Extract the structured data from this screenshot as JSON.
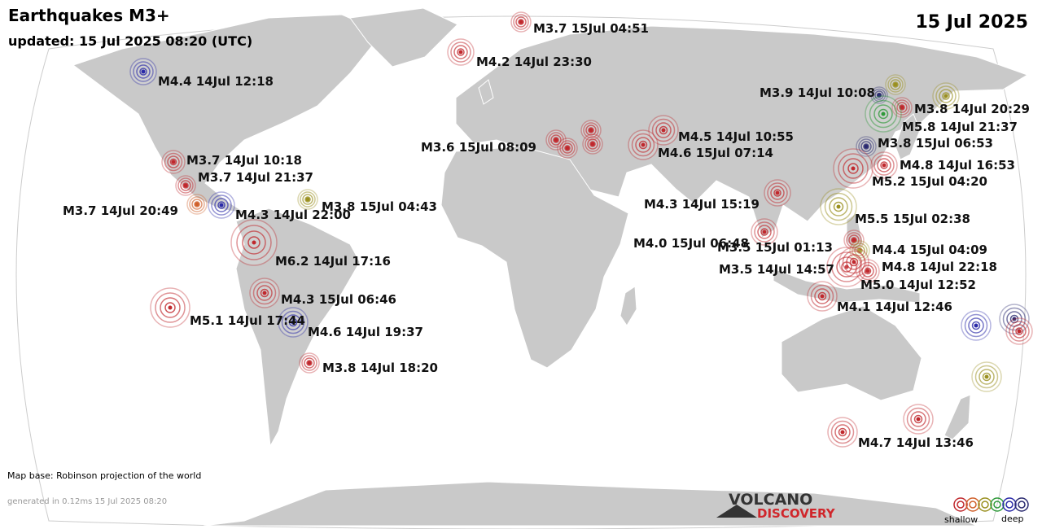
{
  "header": {
    "title": "Earthquakes M3+",
    "updated": "updated: 15 Jul 2025 08:20 (UTC)",
    "date": "15 Jul 2025"
  },
  "quakes": [
    {
      "label": "M3.7 15Jul 04:51",
      "color": "#c0282d"
    },
    {
      "label": "M4.2 14Jul 23:30",
      "color": "#c0282d"
    },
    {
      "label": "M4.4 14Jul 12:18",
      "color": "#2a2aa8"
    },
    {
      "label": "M3.9 14Jul 10:08",
      "color": "#2a2a70"
    },
    {
      "label": "M3.8 14Jul 20:29",
      "color": "#c0282d"
    },
    {
      "label": "M5.8 14Jul 21:37",
      "color": "#2f9a3a"
    },
    {
      "label": "M3.8 15Jul 06:53",
      "color": "#2a2a70"
    },
    {
      "label": "M4.8 14Jul 16:53",
      "color": "#c0282d"
    },
    {
      "label": "M5.2 15Jul 04:20",
      "color": "#c0282d"
    },
    {
      "label": "M4.5 14Jul 10:55",
      "color": "#c0282d"
    },
    {
      "label": "M4.6 15Jul 07:14",
      "color": "#c0282d"
    },
    {
      "label": "M3.6 15Jul 08:09",
      "color": "#c0282d"
    },
    {
      "label": "M4.3 14Jul 15:19",
      "color": "#c0282d"
    },
    {
      "label": "M5.5 15Jul 02:38",
      "color": "#9a9020"
    },
    {
      "label": "M4.0 15Jul 06:48",
      "color": "#c0282d"
    },
    {
      "label": "M3.5 15Jul 01:13",
      "color": "#c0282d"
    },
    {
      "label": "M4.4 15Jul 04:09",
      "color": "#9a9020"
    },
    {
      "label": "M3.5 14Jul 14:57",
      "color": "#c0282d"
    },
    {
      "label": "M4.8 14Jul 22:18",
      "color": "#c0282d"
    },
    {
      "label": "M5.0 14Jul 12:52",
      "color": "#c0282d"
    },
    {
      "label": "M4.1 14Jul 12:46",
      "color": "#c0282d"
    },
    {
      "label": "M4.7 14Jul 13:46",
      "color": "#c0282d"
    },
    {
      "label": "M3.7 14Jul 10:18",
      "color": "#c0282d"
    },
    {
      "label": "M3.7 14Jul 21:37",
      "color": "#c0282d"
    },
    {
      "label": "M3.7 14Jul 20:49",
      "color": "#d0602a"
    },
    {
      "label": "M4.3 14Jul 22:00",
      "color": "#2a2aa8"
    },
    {
      "label": "M3.8 15Jul 04:43",
      "color": "#9a9020"
    },
    {
      "label": "M6.2 14Jul 17:16",
      "color": "#c0282d"
    },
    {
      "label": "M4.3 15Jul 06:46",
      "color": "#c0282d"
    },
    {
      "label": "M5.1 14Jul 17:44",
      "color": "#c0282d"
    },
    {
      "label": "M4.6 14Jul 19:37",
      "color": "#2a2aa8"
    },
    {
      "label": "M3.8 14Jul 18:20",
      "color": "#c0282d"
    }
  ],
  "footer": {
    "map_base": "Map base: Robinson projection of the world",
    "generated": "generated in 0.12ms 15 Jul 2025 08:20"
  },
  "logo": {
    "line1": "VOLCANO",
    "line2": "DISCOVERY"
  },
  "legend": {
    "shallow": "shallow",
    "deep": "deep"
  }
}
